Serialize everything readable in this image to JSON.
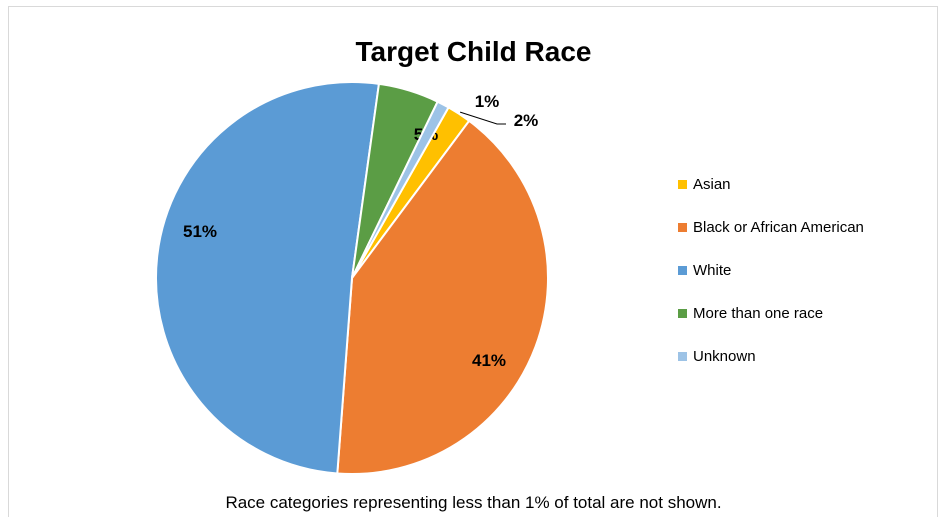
{
  "chart_data": {
    "type": "pie",
    "title": "Target Child Race",
    "footnote": "Race categories representing less than 1% of total are not shown.",
    "slices": [
      {
        "label": "Asian",
        "value": 2,
        "display": "2%",
        "color": "#ffc000"
      },
      {
        "label": "Black or African American",
        "value": 41,
        "display": "41%",
        "color": "#ed7d31"
      },
      {
        "label": "White",
        "value": 51,
        "display": "51%",
        "color": "#5b9bd5"
      },
      {
        "label": "More than one race",
        "value": 5,
        "display": "5%",
        "color": "#5b9d45"
      },
      {
        "label": "Unknown",
        "value": 1,
        "display": "1%",
        "color": "#9dc3e6"
      }
    ],
    "legend_position": "right"
  }
}
